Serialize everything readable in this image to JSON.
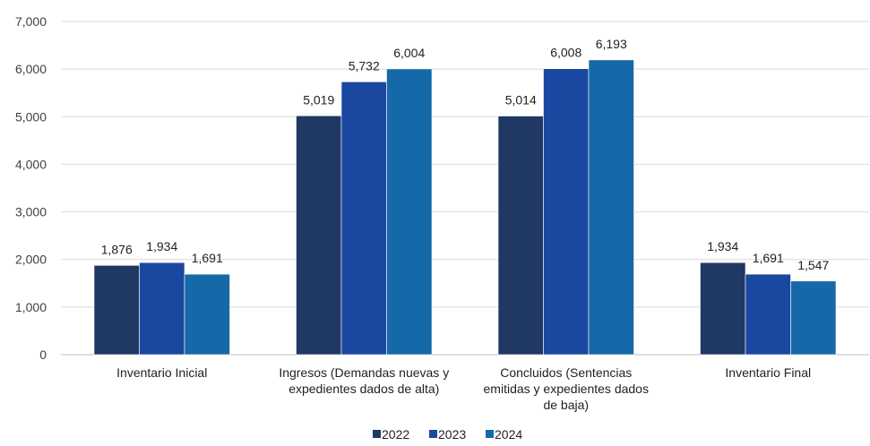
{
  "chart_data": {
    "type": "bar",
    "categories": [
      [
        "Inventario Inicial"
      ],
      [
        "Ingresos (Demandas nuevas y",
        "expedientes dados de alta)"
      ],
      [
        "Concluidos (Sentencias",
        "emitidas y expedientes dados",
        "de baja)"
      ],
      [
        "Inventario Final"
      ]
    ],
    "series": [
      {
        "name": "2022",
        "color": "#1f3864",
        "values": [
          1876,
          5019,
          5014,
          1934
        ],
        "labels": [
          "1,876",
          "5,019",
          "5,014",
          "1,934"
        ]
      },
      {
        "name": "2023",
        "color": "#1a47a0",
        "values": [
          1934,
          5732,
          6008,
          1691
        ],
        "labels": [
          "1,934",
          "5,732",
          "6,008",
          "1,691"
        ]
      },
      {
        "name": "2024",
        "color": "#1569a8",
        "values": [
          1691,
          6004,
          6193,
          1547
        ],
        "labels": [
          "1,691",
          "6,004",
          "6,193",
          "1,547"
        ]
      }
    ],
    "ylim": [
      0,
      7000
    ],
    "yticks": [
      0,
      1000,
      2000,
      3000,
      4000,
      5000,
      6000,
      7000
    ],
    "ytick_labels": [
      "0",
      "1,000",
      "2,000",
      "3,000",
      "4,000",
      "5,000",
      "6,000",
      "7,000"
    ],
    "grid": true,
    "legend": "bottom-center"
  }
}
